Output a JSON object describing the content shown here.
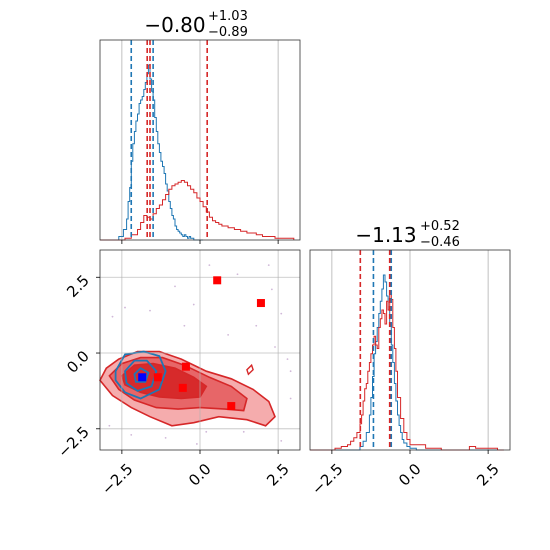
{
  "chart_data": {
    "type": "corner",
    "series_colors": {
      "blue": "#1f77b4",
      "red": "#d62728",
      "marker_blue": "#0000ff",
      "marker_red": "#ff0000"
    },
    "axis_range": [
      -3.2,
      3.2
    ],
    "ticks": [
      -2.5,
      0.0,
      2.5
    ],
    "tick_labels": [
      "−2.5",
      "0.0",
      "2.5"
    ],
    "grid": true,
    "panels": [
      {
        "id": "hist_param1",
        "type": "histogram",
        "title": {
          "main": "−0.80",
          "sup": "+1.03",
          "sub": "−0.89"
        },
        "xlim": [
          -3.2,
          3.2
        ],
        "quantile_lines": {
          "blue": [
            -2.2,
            -1.5
          ],
          "red": [
            -1.69,
            -1.6,
            0.23
          ]
        },
        "series": [
          {
            "name": "",
            "color": "#1f77b4",
            "x": [
              -3.0,
              -2.6,
              -2.45,
              -2.35,
              -2.3,
              -2.25,
              -2.2,
              -2.15,
              -2.1,
              -2.05,
              -2.0,
              -1.95,
              -1.9,
              -1.85,
              -1.8,
              -1.75,
              -1.7,
              -1.65,
              -1.6,
              -1.55,
              -1.5,
              -1.45,
              -1.4,
              -1.35,
              -1.3,
              -1.25,
              -1.2,
              -1.15,
              -1.1,
              -1.05,
              -1.0,
              -0.95,
              -0.9,
              -0.85,
              -0.8,
              -0.75,
              -0.7,
              -0.65,
              -0.6,
              -0.55,
              -0.5,
              -0.45,
              -0.4,
              -0.35,
              -0.3,
              -0.2,
              -0.1,
              0.1
            ],
            "y": [
              0,
              0.02,
              0.06,
              0.12,
              0.22,
              0.3,
              0.45,
              0.55,
              0.62,
              0.68,
              0.72,
              0.78,
              0.8,
              0.82,
              0.86,
              0.9,
              0.95,
              1.0,
              0.92,
              0.85,
              0.8,
              0.7,
              0.62,
              0.55,
              0.5,
              0.45,
              0.42,
              0.38,
              0.32,
              0.28,
              0.22,
              0.18,
              0.14,
              0.12,
              0.08,
              0.06,
              0.05,
              0.04,
              0.03,
              0.02,
              0.03,
              0.02,
              0.01,
              0.02,
              0.01,
              0.0,
              0.0,
              0.0
            ]
          },
          {
            "name": "",
            "color": "#d62728",
            "x": [
              -3.2,
              -2.4,
              -2.2,
              -2.0,
              -1.9,
              -1.8,
              -1.7,
              -1.6,
              -1.5,
              -1.4,
              -1.3,
              -1.2,
              -1.1,
              -1.0,
              -0.9,
              -0.8,
              -0.7,
              -0.6,
              -0.5,
              -0.4,
              -0.3,
              -0.2,
              -0.1,
              0.0,
              0.1,
              0.2,
              0.3,
              0.4,
              0.5,
              0.6,
              0.7,
              0.8,
              0.9,
              1.0,
              1.1,
              1.2,
              1.3,
              1.4,
              1.5,
              1.6,
              1.7,
              1.8,
              1.9,
              2.0,
              2.2,
              2.4,
              2.6,
              2.8,
              3.0
            ],
            "y": [
              0,
              0.01,
              0.03,
              0.06,
              0.1,
              0.14,
              0.13,
              0.12,
              0.15,
              0.18,
              0.2,
              0.23,
              0.26,
              0.29,
              0.31,
              0.32,
              0.33,
              0.34,
              0.33,
              0.31,
              0.29,
              0.27,
              0.24,
              0.22,
              0.19,
              0.16,
              0.13,
              0.11,
              0.1,
              0.09,
              0.08,
              0.08,
              0.07,
              0.07,
              0.06,
              0.06,
              0.05,
              0.05,
              0.04,
              0.04,
              0.04,
              0.03,
              0.03,
              0.02,
              0.02,
              0.01,
              0.01,
              0.01,
              0.0
            ]
          }
        ]
      },
      {
        "id": "hist_param2",
        "type": "histogram",
        "title": {
          "main": "−1.13",
          "sup": "+0.52",
          "sub": "−0.46"
        },
        "xlim": [
          -3.2,
          3.2
        ],
        "quantile_lines": {
          "blue": [
            -1.17,
            -0.6
          ],
          "red": [
            -1.59,
            -0.65
          ]
        },
        "series": [
          {
            "name": "",
            "color": "#1f77b4",
            "x": [
              -3.0,
              -2.0,
              -1.6,
              -1.5,
              -1.4,
              -1.3,
              -1.25,
              -1.2,
              -1.15,
              -1.1,
              -1.05,
              -1.0,
              -0.95,
              -0.9,
              -0.85,
              -0.8,
              -0.75,
              -0.7,
              -0.65,
              -0.6,
              -0.55,
              -0.5,
              -0.45,
              -0.4,
              -0.35,
              -0.3,
              -0.25,
              -0.2,
              -0.1,
              0.0,
              0.2,
              1.0,
              3.0
            ],
            "y": [
              0,
              0.0,
              0.02,
              0.05,
              0.1,
              0.2,
              0.3,
              0.42,
              0.55,
              0.62,
              0.7,
              0.78,
              0.85,
              0.92,
              1.0,
              0.96,
              0.88,
              0.8,
              0.72,
              0.6,
              0.5,
              0.38,
              0.28,
              0.2,
              0.14,
              0.1,
              0.06,
              0.04,
              0.02,
              0.01,
              0.0,
              0.0,
              0.0
            ]
          },
          {
            "name": "",
            "color": "#d62728",
            "x": [
              -3.2,
              -2.4,
              -2.2,
              -2.0,
              -1.9,
              -1.8,
              -1.7,
              -1.6,
              -1.55,
              -1.5,
              -1.45,
              -1.4,
              -1.35,
              -1.3,
              -1.25,
              -1.2,
              -1.15,
              -1.1,
              -1.05,
              -1.0,
              -0.95,
              -0.9,
              -0.85,
              -0.8,
              -0.75,
              -0.7,
              -0.65,
              -0.6,
              -0.55,
              -0.5,
              -0.45,
              -0.4,
              -0.3,
              -0.2,
              -0.1,
              0.0,
              0.5,
              1.0,
              1.5,
              1.9,
              2.1,
              2.4,
              2.8,
              3.0
            ],
            "y": [
              0,
              0.01,
              0.02,
              0.03,
              0.05,
              0.07,
              0.1,
              0.15,
              0.2,
              0.28,
              0.35,
              0.38,
              0.45,
              0.5,
              0.55,
              0.6,
              0.65,
              0.6,
              0.58,
              0.7,
              0.75,
              0.8,
              0.78,
              0.72,
              0.85,
              0.8,
              0.9,
              0.86,
              0.7,
              0.58,
              0.45,
              0.3,
              0.18,
              0.1,
              0.06,
              0.03,
              0.01,
              0.0,
              0.0,
              0.02,
              0.01,
              0.01,
              0.0,
              0.0
            ]
          }
        ]
      },
      {
        "id": "scatter_2d",
        "type": "contour",
        "xlim": [
          -3.2,
          3.2
        ],
        "ylim": [
          -3.2,
          3.4
        ],
        "red_contours": [
          [
            [
              -3.2,
              -0.9
            ],
            [
              -3.0,
              -0.5
            ],
            [
              -2.6,
              -0.2
            ],
            [
              -2.0,
              0.05
            ],
            [
              -1.3,
              0.05
            ],
            [
              -0.6,
              -0.2
            ],
            [
              0.2,
              -0.6
            ],
            [
              1.0,
              -0.85
            ],
            [
              1.7,
              -1.2
            ],
            [
              2.2,
              -1.6
            ],
            [
              2.4,
              -2.1
            ],
            [
              2.1,
              -2.4
            ],
            [
              1.5,
              -2.2
            ],
            [
              0.6,
              -2.1
            ],
            [
              -0.2,
              -2.3
            ],
            [
              -0.9,
              -2.4
            ],
            [
              -1.6,
              -2.1
            ],
            [
              -2.2,
              -1.8
            ],
            [
              -2.8,
              -1.4
            ],
            [
              -3.2,
              -0.9
            ]
          ],
          [
            [
              -2.9,
              -0.75
            ],
            [
              -2.5,
              -0.35
            ],
            [
              -1.9,
              -0.15
            ],
            [
              -1.2,
              -0.15
            ],
            [
              -0.5,
              -0.4
            ],
            [
              0.3,
              -0.8
            ],
            [
              1.0,
              -1.1
            ],
            [
              1.5,
              -1.5
            ],
            [
              1.4,
              -1.9
            ],
            [
              0.8,
              -1.85
            ],
            [
              0.0,
              -1.8
            ],
            [
              -0.7,
              -1.85
            ],
            [
              -1.4,
              -1.8
            ],
            [
              -2.1,
              -1.55
            ],
            [
              -2.6,
              -1.2
            ],
            [
              -2.9,
              -0.75
            ]
          ],
          [
            [
              -2.5,
              -0.75
            ],
            [
              -2.1,
              -0.4
            ],
            [
              -1.5,
              -0.35
            ],
            [
              -0.8,
              -0.5
            ],
            [
              -0.2,
              -0.8
            ],
            [
              0.2,
              -1.1
            ],
            [
              0.0,
              -1.45
            ],
            [
              -0.6,
              -1.5
            ],
            [
              -1.3,
              -1.45
            ],
            [
              -1.9,
              -1.3
            ],
            [
              -2.4,
              -1.05
            ],
            [
              -2.5,
              -0.75
            ]
          ]
        ],
        "red_small_contour": [
          [
            1.5,
            -0.55
          ],
          [
            1.65,
            -0.4
          ],
          [
            1.7,
            -0.55
          ],
          [
            1.55,
            -0.7
          ],
          [
            1.5,
            -0.55
          ]
        ],
        "blue_contours": [
          [
            [
              -2.7,
              -0.6
            ],
            [
              -2.4,
              -0.05
            ],
            [
              -1.8,
              0.05
            ],
            [
              -1.3,
              -0.1
            ],
            [
              -1.1,
              -0.6
            ],
            [
              -1.3,
              -1.2
            ],
            [
              -1.9,
              -1.5
            ],
            [
              -2.4,
              -1.3
            ],
            [
              -2.7,
              -0.9
            ],
            [
              -2.7,
              -0.6
            ]
          ],
          [
            [
              -2.4,
              -0.6
            ],
            [
              -2.1,
              -0.25
            ],
            [
              -1.7,
              -0.25
            ],
            [
              -1.4,
              -0.6
            ],
            [
              -1.55,
              -1.1
            ],
            [
              -2.0,
              -1.25
            ],
            [
              -2.35,
              -1.0
            ],
            [
              -2.4,
              -0.6
            ]
          ],
          [
            [
              -2.1,
              -0.7
            ],
            [
              -1.9,
              -0.5
            ],
            [
              -1.65,
              -0.65
            ],
            [
              -1.75,
              -0.95
            ],
            [
              -2.05,
              -0.95
            ],
            [
              -2.1,
              -0.7
            ]
          ]
        ],
        "red_markers": [
          [
            0.55,
            2.4
          ],
          [
            1.95,
            1.65
          ],
          [
            -0.45,
            -0.45
          ],
          [
            -1.35,
            -0.8
          ],
          [
            -0.55,
            -1.15
          ],
          [
            1.0,
            -1.75
          ]
        ],
        "blue_markers": [
          [
            -1.85,
            -0.8
          ]
        ],
        "scatter_points": [
          [
            -2.8,
            1.2
          ],
          [
            -2.4,
            1.5
          ],
          [
            -1.6,
            1.4
          ],
          [
            -0.8,
            2.2
          ],
          [
            -0.2,
            1.6
          ],
          [
            0.3,
            2.9
          ],
          [
            1.2,
            2.6
          ],
          [
            2.3,
            2.1
          ],
          [
            2.6,
            1.3
          ],
          [
            1.8,
            0.9
          ],
          [
            2.4,
            0.2
          ],
          [
            2.9,
            -0.6
          ],
          [
            0.9,
            0.6
          ],
          [
            -0.5,
            0.9
          ],
          [
            -2.9,
            -2.4
          ],
          [
            -2.2,
            -2.7
          ],
          [
            -1.1,
            -2.8
          ],
          [
            0.2,
            -2.6
          ],
          [
            1.4,
            -2.6
          ],
          [
            2.6,
            -2.9
          ],
          [
            2.9,
            -1.5
          ],
          [
            -0.1,
            -3.0
          ],
          [
            2.2,
            2.9
          ],
          [
            2.8,
            -0.2
          ]
        ]
      }
    ]
  }
}
